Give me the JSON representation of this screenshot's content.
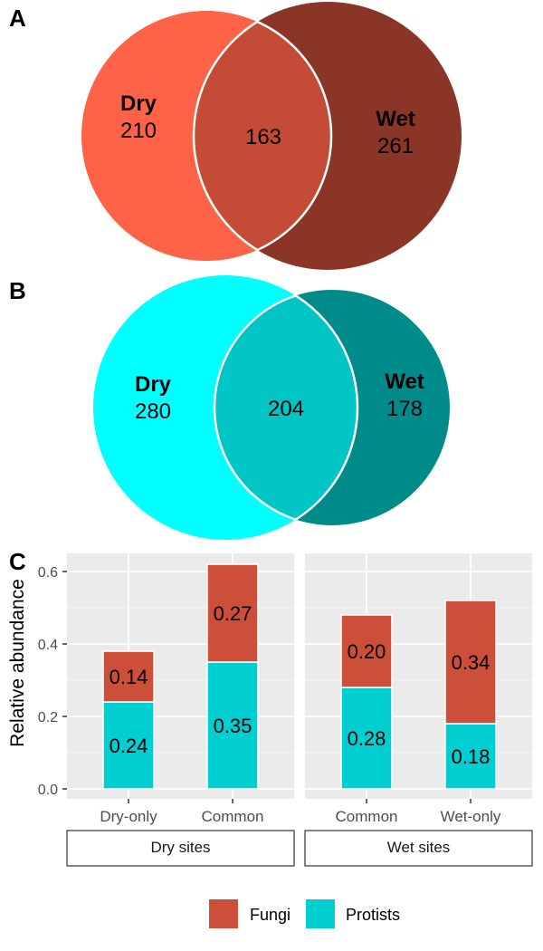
{
  "venns": [
    {
      "letter": "A",
      "left": {
        "name": "Dry",
        "count": "210",
        "color": "#FF6347"
      },
      "right": {
        "name": "Wet",
        "count": "261",
        "color": "#8B3527"
      },
      "overlap": {
        "count": "163",
        "color": "#C44B36"
      }
    },
    {
      "letter": "B",
      "left": {
        "name": "Dry",
        "count": "280",
        "color": "#00FFFF"
      },
      "right": {
        "name": "Wet",
        "count": "178",
        "color": "#008B8B"
      },
      "overlap": {
        "count": "204",
        "color": "#00C5C5"
      }
    }
  ],
  "chart_letter": "C",
  "chart_data": {
    "type": "bar",
    "stacked": true,
    "ylabel": "Relative abundance",
    "ylim": [
      0,
      0.65
    ],
    "yticks": [
      "0.0",
      "0.2",
      "0.4",
      "0.6"
    ],
    "ytick_values": [
      0,
      0.2,
      0.4,
      0.6
    ],
    "grid": true,
    "legend_position": "bottom",
    "series": [
      {
        "name": "Protists",
        "color": "#00CED1"
      },
      {
        "name": "Fungi",
        "color": "#CD4F39"
      }
    ],
    "facets": [
      {
        "title": "Dry sites",
        "categories": [
          "Dry-only",
          "Common"
        ],
        "values": {
          "Protists": [
            0.24,
            0.35
          ],
          "Fungi": [
            0.14,
            0.27
          ]
        },
        "labels": {
          "Protists": [
            "0.24",
            "0.35"
          ],
          "Fungi": [
            "0.14",
            "0.27"
          ]
        }
      },
      {
        "title": "Wet sites",
        "categories": [
          "Common",
          "Wet-only"
        ],
        "values": {
          "Protists": [
            0.28,
            0.18
          ],
          "Fungi": [
            0.2,
            0.34
          ]
        },
        "labels": {
          "Protists": [
            "0.28",
            "0.18"
          ],
          "Fungi": [
            "0.20",
            "0.34"
          ]
        }
      }
    ],
    "legend": [
      "Fungi",
      "Protists"
    ]
  }
}
